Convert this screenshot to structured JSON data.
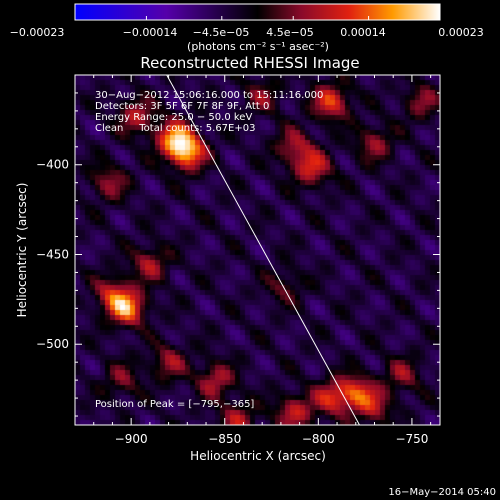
{
  "chart_data": {
    "type": "heatmap",
    "title": "Reconstructed RHESSI Image",
    "xlabel": "Heliocentric X (arcsec)",
    "ylabel": "Heliocentric Y (arcsec)",
    "xlim": [
      -930,
      -735
    ],
    "ylim": [
      -545,
      -350
    ],
    "x_ticks": [
      -900,
      -850,
      -800,
      -750
    ],
    "y_ticks": [
      -400,
      -450,
      -500
    ],
    "x_tick_labels": [
      "−900",
      "−850",
      "−800",
      "−750"
    ],
    "y_tick_labels": [
      "−400",
      "−450",
      "−500"
    ],
    "colorbar": {
      "min": -0.00023,
      "max": 0.00023,
      "ticks": [
        -0.00023,
        -0.00014,
        -4.5e-05,
        4.5e-05,
        0.00014,
        0.00023
      ],
      "tick_labels": [
        "−0.00023",
        "−0.00014",
        "−4.5e−05",
        "4.5e−05",
        "0.00014",
        "0.00023"
      ],
      "unit_label": "(photons cm⁻² s⁻¹ asec⁻²)"
    },
    "annotations": [
      "30−Aug−2012 15:06:16.000 to 15:11:16.000",
      "Detectors: 3F 5F 6F 7F 8F 9F, Att 0",
      "Energy Range: 25.0 − 50.0 keV",
      "Clean     Total counts: 5.67E+03",
      "Position of Peak = [−795,−365]"
    ],
    "limb_line": {
      "x": [
        -881,
        -778
      ],
      "y": [
        -350,
        -545
      ]
    },
    "peak": {
      "x": -795,
      "y": -365
    },
    "hotspots": [
      {
        "x": -870,
        "y": -393,
        "value": 0.00021
      },
      {
        "x": -877,
        "y": -385,
        "value": 0.00018
      },
      {
        "x": -902,
        "y": -480,
        "value": 0.00019
      },
      {
        "x": -910,
        "y": -472,
        "value": 0.00012
      },
      {
        "x": -897,
        "y": -373,
        "value": 0.00012
      },
      {
        "x": -912,
        "y": -410,
        "value": 0.0001
      },
      {
        "x": -890,
        "y": -455,
        "value": 0.00011
      },
      {
        "x": -880,
        "y": -510,
        "value": 0.0001
      },
      {
        "x": -855,
        "y": -520,
        "value": 0.00012
      },
      {
        "x": -843,
        "y": -542,
        "value": 0.00011
      },
      {
        "x": -813,
        "y": -538,
        "value": 0.00013
      },
      {
        "x": -793,
        "y": -365,
        "value": 0.00016
      },
      {
        "x": -803,
        "y": -402,
        "value": 0.00014
      },
      {
        "x": -813,
        "y": -390,
        "value": 0.00011
      },
      {
        "x": -770,
        "y": -388,
        "value": 0.0001
      },
      {
        "x": -745,
        "y": -365,
        "value": 9e-05
      },
      {
        "x": -793,
        "y": -530,
        "value": 0.00013
      },
      {
        "x": -780,
        "y": -527,
        "value": 0.00015
      },
      {
        "x": -770,
        "y": -535,
        "value": 0.0001
      },
      {
        "x": -755,
        "y": -517,
        "value": 9e-05
      },
      {
        "x": -818,
        "y": -468,
        "value": 7e-05
      },
      {
        "x": -830,
        "y": -362,
        "value": 8e-05
      },
      {
        "x": -905,
        "y": -520,
        "value": 8e-05
      }
    ]
  },
  "footer": {
    "timestamp": "16−May−2014 05:40"
  }
}
